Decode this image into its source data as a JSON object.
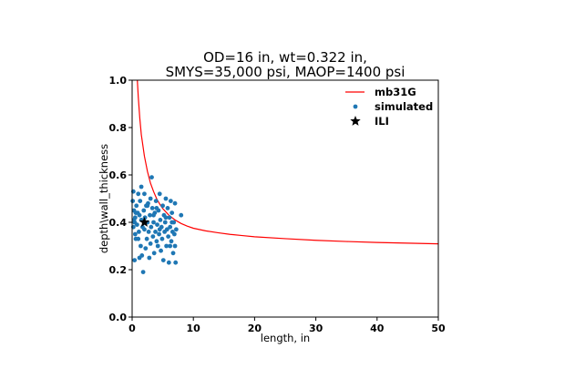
{
  "chart_data": {
    "type": "scatter",
    "title_lines": [
      "OD=16 in, wt=0.322 in,",
      "SMYS=35,000 psi, MAOP=1400 psi"
    ],
    "xlabel": "length, in",
    "ylabel": "depth\\wall_thickness",
    "xlim": [
      0,
      50
    ],
    "ylim": [
      0.0,
      1.0
    ],
    "x_ticks": [
      0,
      10,
      20,
      30,
      40,
      50
    ],
    "y_ticks": [
      0.0,
      0.2,
      0.4,
      0.6,
      0.8,
      1.0
    ],
    "x_tick_labels": [
      "0",
      "10",
      "20",
      "30",
      "40",
      "50"
    ],
    "y_tick_labels": [
      "0.0",
      "0.2",
      "0.4",
      "0.6",
      "0.8",
      "1.0"
    ],
    "legend_position": "top-right",
    "series": [
      {
        "name": "mb31G",
        "kind": "line",
        "color": "#ff0000",
        "x": [
          0.85,
          1.0,
          1.25,
          1.5,
          2.0,
          2.5,
          3.0,
          3.5,
          4.0,
          4.5,
          5.0,
          6.0,
          7.0,
          8.0,
          9.0,
          10.0,
          12.0,
          14.0,
          16.0,
          18.0,
          20.0,
          25.0,
          30.0,
          35.0,
          40.0,
          45.0,
          50.0
        ],
        "y": [
          1.0,
          0.93,
          0.84,
          0.77,
          0.68,
          0.615,
          0.565,
          0.53,
          0.5,
          0.477,
          0.458,
          0.43,
          0.41,
          0.395,
          0.384,
          0.375,
          0.364,
          0.356,
          0.349,
          0.344,
          0.339,
          0.331,
          0.324,
          0.319,
          0.315,
          0.312,
          0.309
        ]
      },
      {
        "name": "simulated",
        "kind": "scatter",
        "color": "#1f77b4",
        "points": [
          [
            0.1,
            0.49
          ],
          [
            0.2,
            0.53
          ],
          [
            0.3,
            0.41
          ],
          [
            0.3,
            0.45
          ],
          [
            0.4,
            0.4
          ],
          [
            0.5,
            0.42
          ],
          [
            0.5,
            0.35
          ],
          [
            0.6,
            0.44
          ],
          [
            0.7,
            0.47
          ],
          [
            0.8,
            0.39
          ],
          [
            0.9,
            0.44
          ],
          [
            1.0,
            0.33
          ],
          [
            1.0,
            0.52
          ],
          [
            1.1,
            0.36
          ],
          [
            1.2,
            0.43
          ],
          [
            1.3,
            0.49
          ],
          [
            1.4,
            0.3
          ],
          [
            1.5,
            0.55
          ],
          [
            1.6,
            0.26
          ],
          [
            1.8,
            0.19
          ],
          [
            1.7,
            0.38
          ],
          [
            1.9,
            0.45
          ],
          [
            2.0,
            0.37
          ],
          [
            2.1,
            0.42
          ],
          [
            2.2,
            0.29
          ],
          [
            2.3,
            0.47
          ],
          [
            2.4,
            0.33
          ],
          [
            2.5,
            0.4
          ],
          [
            2.6,
            0.48
          ],
          [
            2.7,
            0.36
          ],
          [
            2.8,
            0.25
          ],
          [
            2.9,
            0.43
          ],
          [
            3.0,
            0.31
          ],
          [
            3.1,
            0.38
          ],
          [
            3.2,
            0.59
          ],
          [
            3.3,
            0.46
          ],
          [
            3.4,
            0.34
          ],
          [
            3.5,
            0.4
          ],
          [
            3.6,
            0.27
          ],
          [
            3.7,
            0.44
          ],
          [
            3.8,
            0.36
          ],
          [
            3.9,
            0.49
          ],
          [
            4.0,
            0.32
          ],
          [
            4.1,
            0.39
          ],
          [
            4.2,
            0.3
          ],
          [
            4.3,
            0.45
          ],
          [
            4.4,
            0.35
          ],
          [
            4.5,
            0.52
          ],
          [
            4.6,
            0.41
          ],
          [
            4.7,
            0.28
          ],
          [
            4.8,
            0.38
          ],
          [
            4.9,
            0.33
          ],
          [
            5.0,
            0.47
          ],
          [
            5.1,
            0.24
          ],
          [
            5.2,
            0.43
          ],
          [
            5.3,
            0.36
          ],
          [
            5.4,
            0.4
          ],
          [
            5.5,
            0.5
          ],
          [
            5.6,
            0.3
          ],
          [
            5.7,
            0.37
          ],
          [
            5.8,
            0.46
          ],
          [
            5.9,
            0.34
          ],
          [
            6.0,
            0.23
          ],
          [
            6.1,
            0.42
          ],
          [
            6.2,
            0.38
          ],
          [
            6.3,
            0.49
          ],
          [
            6.4,
            0.32
          ],
          [
            6.5,
            0.44
          ],
          [
            6.6,
            0.36
          ],
          [
            6.7,
            0.27
          ],
          [
            6.8,
            0.4
          ],
          [
            6.9,
            0.35
          ],
          [
            7.0,
            0.48
          ],
          [
            7.1,
            0.23
          ],
          [
            7.2,
            0.37
          ],
          [
            0.2,
            0.38
          ],
          [
            0.6,
            0.33
          ],
          [
            1.2,
            0.25
          ],
          [
            1.5,
            0.41
          ],
          [
            2.0,
            0.52
          ],
          [
            2.5,
            0.47
          ],
          [
            3.0,
            0.5
          ],
          [
            3.5,
            0.43
          ],
          [
            4.0,
            0.46
          ],
          [
            6.5,
            0.4
          ],
          [
            8.0,
            0.43
          ],
          [
            0.4,
            0.24
          ],
          [
            5.5,
            0.42
          ],
          [
            6.2,
            0.3
          ],
          [
            4.5,
            0.37
          ],
          [
            7.0,
            0.3
          ]
        ]
      },
      {
        "name": "ILI",
        "kind": "marker",
        "marker": "star",
        "color": "#000000",
        "points": [
          [
            2.0,
            0.4
          ]
        ]
      }
    ]
  }
}
